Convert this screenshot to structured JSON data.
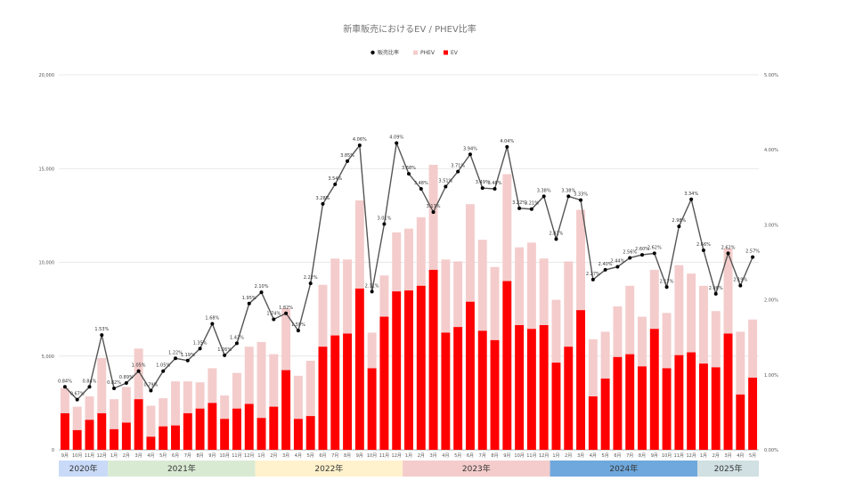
{
  "chart_data": {
    "type": "bar",
    "title": "新車販売におけるEV / PHEV比率",
    "legend": {
      "placement": "top",
      "items": [
        {
          "name": "販売比率",
          "marker": "dot",
          "color": "#000000"
        },
        {
          "name": "PHEV",
          "marker": "square",
          "color": "#f4cccc"
        },
        {
          "name": "EV",
          "marker": "square",
          "color": "#ff0000"
        }
      ]
    },
    "y_left": {
      "min": 0,
      "max": 20000,
      "ticks": [
        "0",
        "5,000",
        "10,000",
        "15,000",
        "20,000"
      ],
      "tick_values": [
        0,
        5000,
        10000,
        15000,
        20000
      ]
    },
    "y_right": {
      "min": 0,
      "max": 5,
      "ticks": [
        "0.00%",
        "1.00%",
        "2.00%",
        "3.00%",
        "4.00%",
        "5.00%"
      ],
      "tick_values": [
        0,
        1,
        2,
        3,
        4,
        5
      ]
    },
    "grid": true,
    "categories": [
      "9月",
      "10月",
      "11月",
      "12月",
      "1月",
      "2月",
      "3月",
      "4月",
      "5月",
      "6月",
      "7月",
      "8月",
      "9月",
      "10月",
      "11月",
      "12月",
      "1月",
      "2月",
      "3月",
      "4月",
      "5月",
      "6月",
      "7月",
      "8月",
      "9月",
      "10月",
      "11月",
      "12月",
      "1月",
      "2月",
      "3月",
      "4月",
      "5月",
      "6月",
      "7月",
      "8月",
      "9月",
      "10月",
      "11月",
      "12月",
      "1月",
      "2月",
      "3月",
      "4月",
      "5月",
      "6月",
      "7月",
      "8月",
      "9月",
      "10月",
      "11月",
      "12月",
      "1月",
      "2月",
      "3月",
      "4月",
      "5月"
    ],
    "year_bands": [
      {
        "label": "2020年",
        "start": 0,
        "count": 4,
        "color": "#c9daf8"
      },
      {
        "label": "2021年",
        "start": 4,
        "count": 12,
        "color": "#d9ead3"
      },
      {
        "label": "2022年",
        "start": 16,
        "count": 12,
        "color": "#fff2cc"
      },
      {
        "label": "2023年",
        "start": 28,
        "count": 12,
        "color": "#f4cccc"
      },
      {
        "label": "2024年",
        "start": 40,
        "count": 12,
        "color": "#6fa8dc"
      },
      {
        "label": "2025年",
        "start": 52,
        "count": 5,
        "color": "#d0e0e3"
      }
    ],
    "series": [
      {
        "name": "EV",
        "type": "bar",
        "axis": "left",
        "color": "#ff0000",
        "values": [
          1950,
          1050,
          1600,
          1950,
          1100,
          1450,
          2700,
          700,
          1250,
          1300,
          1950,
          2200,
          2500,
          1650,
          2200,
          2450,
          1700,
          2300,
          4250,
          1650,
          1800,
          5500,
          6100,
          6200,
          8600,
          4350,
          7100,
          8450,
          8500,
          8750,
          9600,
          6250,
          6550,
          7900,
          6350,
          5850,
          9000,
          6650,
          6450,
          6650,
          4650,
          5500,
          7450,
          2850,
          3800,
          4950,
          5100,
          4450,
          6450,
          4350,
          5050,
          5200,
          4600,
          4400,
          6200,
          2950,
          3850
        ]
      },
      {
        "name": "PHEV",
        "type": "bar",
        "axis": "left",
        "color": "#f4cccc",
        "values": [
          1350,
          1250,
          1250,
          2950,
          1600,
          1900,
          2700,
          1650,
          1500,
          2350,
          1700,
          1400,
          1850,
          1250,
          1900,
          3050,
          4050,
          2800,
          3300,
          2300,
          2950,
          3300,
          4100,
          3950,
          4700,
          1900,
          2200,
          3150,
          3300,
          3650,
          5600,
          3900,
          3500,
          5200,
          4850,
          3900,
          5700,
          4150,
          4600,
          3550,
          3350,
          4550,
          5350,
          3050,
          2500,
          2700,
          3650,
          2650,
          3150,
          2950,
          4800,
          4200,
          4150,
          3000,
          4550,
          3350,
          3100
        ]
      },
      {
        "name": "販売比率",
        "type": "line",
        "axis": "right",
        "color": "#000000",
        "values": [
          0.84,
          0.67,
          0.84,
          1.53,
          0.82,
          0.89,
          1.05,
          0.79,
          1.05,
          1.22,
          1.19,
          1.35,
          1.68,
          1.26,
          1.42,
          1.95,
          2.1,
          1.74,
          1.82,
          1.59,
          2.22,
          3.28,
          3.54,
          3.85,
          4.06,
          2.11,
          3.01,
          4.09,
          3.68,
          3.48,
          3.17,
          3.51,
          3.71,
          3.94,
          3.49,
          3.48,
          4.04,
          3.22,
          3.21,
          3.38,
          2.81,
          3.38,
          3.33,
          2.27,
          2.4,
          2.44,
          2.56,
          2.6,
          2.62,
          2.17,
          2.98,
          3.34,
          2.66,
          2.08,
          2.62,
          2.19,
          2.57
        ],
        "labels": [
          "0.84%",
          "0.67%",
          "0.84%",
          "1.53%",
          "0.82%",
          "0.89%",
          "1.05%",
          "0.79%",
          "1.05%",
          "1.22%",
          "1.19%",
          "1.35%",
          "1.68%",
          "1.26%",
          "1.42%",
          "1.95%",
          "2.10%",
          "1.74%",
          "1.82%",
          "1.59%",
          "2.22%",
          "3.28%",
          "3.54%",
          "3.85%",
          "4.06%",
          "2.11%",
          "3.01%",
          "4.09%",
          "3.68%",
          "3.48%",
          "3.17%",
          "3.51%",
          "3.71%",
          "3.94%",
          "3.49%",
          "3.48%",
          "4.04%",
          "3.22%",
          "3.21%",
          "3.38%",
          "2.81%",
          "3.38%",
          "3.33%",
          "2.27%",
          "2.40%",
          "2.44%",
          "2.56%",
          "2.60%",
          "2.62%",
          "2.17%",
          "2.98%",
          "3.34%",
          "2.66%",
          "2.08%",
          "2.62%",
          "2.19%",
          "2.57%"
        ]
      }
    ]
  }
}
